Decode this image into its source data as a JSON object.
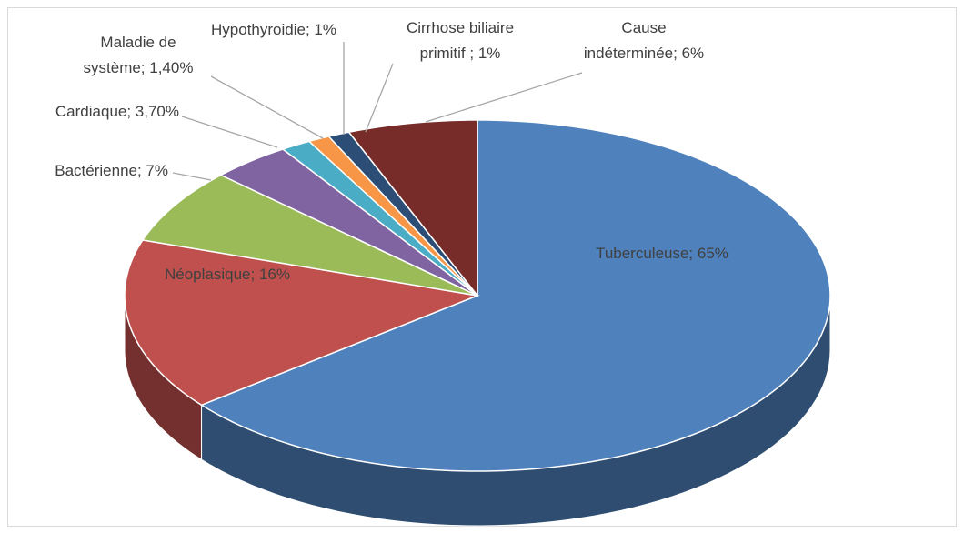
{
  "chart_data": {
    "type": "pie3d",
    "values": [
      65,
      16,
      7,
      3.7,
      1.4,
      1,
      1,
      6
    ],
    "value_labels": [
      "Tuberculeuse; 65%",
      "Néoplasique; 16%",
      "Bactérienne; 7%",
      "Cardiaque; 3,70%",
      "Maladie de\nsystème; 1,40%",
      "Hypothyroidie; 1%",
      "Cirrhose biliaire\nprimitif ; 1%",
      "Cause\nindéterminée; 6%"
    ],
    "colors": [
      "#4f81bd",
      "#c0504d",
      "#9bbb59",
      "#8064a2",
      "#4bacc6",
      "#f79646",
      "#2c4d75",
      "#772c2a"
    ]
  }
}
